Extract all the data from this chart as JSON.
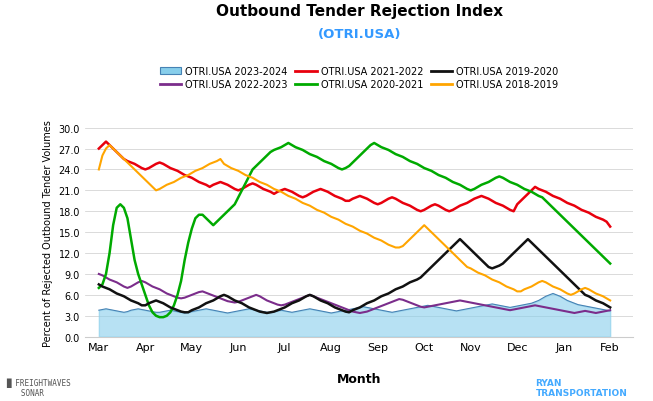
{
  "title": "Outbound Tender Rejection Index",
  "subtitle": "(OTRI.USA)",
  "xlabel": "Month",
  "ylabel": "Percent of Rejected Outbound Tender Volumes",
  "ylim": [
    0.0,
    30.0
  ],
  "yticks": [
    0.0,
    3.0,
    6.0,
    9.0,
    12.0,
    15.0,
    18.0,
    21.0,
    24.0,
    27.0,
    30.0
  ],
  "months": [
    "Mar",
    "Apr",
    "May",
    "Jun",
    "Jul",
    "Aug",
    "Sep",
    "Oct",
    "Nov",
    "Dec",
    "Jan",
    "Feb"
  ],
  "colors": {
    "2023-2024": "#87CEEB",
    "2022-2023": "#7B2D8B",
    "2021-2022": "#E8000D",
    "2020-2021": "#00AA00",
    "2019-2020": "#111111",
    "2018-2019": "#FFA500"
  },
  "legend_labels": [
    "OTRI.USA 2023-2024",
    "OTRI.USA 2022-2023",
    "OTRI.USA 2021-2022",
    "OTRI.USA 2020-2021",
    "OTRI.USA 2019-2020",
    "OTRI.USA 2018-2019"
  ],
  "series_2023_2024": [
    3.8,
    3.9,
    4.0,
    3.9,
    3.8,
    3.7,
    3.6,
    3.5,
    3.6,
    3.8,
    3.9,
    4.0,
    3.9,
    3.8,
    3.7,
    3.6,
    3.5,
    3.5,
    3.6,
    3.7,
    3.8,
    3.7,
    3.6,
    3.5,
    3.4,
    3.5,
    3.6,
    3.7,
    3.8,
    3.9,
    4.0,
    3.9,
    3.8,
    3.7,
    3.6,
    3.5,
    3.4,
    3.5,
    3.6,
    3.7,
    3.8,
    3.9,
    4.0,
    3.9,
    3.8,
    3.7,
    3.6,
    3.5,
    3.5,
    3.6,
    3.7,
    3.8,
    3.7,
    3.6,
    3.5,
    3.6,
    3.7,
    3.8,
    3.9,
    4.0,
    3.9,
    3.8,
    3.7,
    3.6,
    3.5,
    3.4,
    3.5,
    3.6,
    3.7,
    3.8,
    3.9,
    4.0,
    4.1,
    4.2,
    4.3,
    4.2,
    4.1,
    4.0,
    3.9,
    3.8,
    3.7,
    3.6,
    3.5,
    3.6,
    3.7,
    3.8,
    3.9,
    4.0,
    4.1,
    4.2,
    4.3,
    4.4,
    4.5,
    4.4,
    4.3,
    4.2,
    4.1,
    4.0,
    3.9,
    3.8,
    3.7,
    3.8,
    3.9,
    4.0,
    4.1,
    4.2,
    4.3,
    4.4,
    4.5,
    4.6,
    4.7,
    4.6,
    4.5,
    4.4,
    4.3,
    4.2,
    4.3,
    4.4,
    4.5,
    4.6,
    4.7,
    4.8,
    5.0,
    5.2,
    5.5,
    5.8,
    6.0,
    6.2,
    6.0,
    5.8,
    5.5,
    5.2,
    5.0,
    4.8,
    4.6,
    4.5,
    4.4,
    4.3,
    4.2,
    4.1,
    4.0,
    3.9,
    3.8,
    3.7
  ],
  "series_2022_2023": [
    9.0,
    8.8,
    8.5,
    8.2,
    8.0,
    7.8,
    7.5,
    7.2,
    7.0,
    7.2,
    7.5,
    7.8,
    8.0,
    7.8,
    7.5,
    7.2,
    7.0,
    6.8,
    6.5,
    6.2,
    6.0,
    5.8,
    5.6,
    5.5,
    5.6,
    5.8,
    6.0,
    6.2,
    6.4,
    6.5,
    6.3,
    6.1,
    5.9,
    5.7,
    5.5,
    5.3,
    5.1,
    5.0,
    4.9,
    5.0,
    5.2,
    5.4,
    5.6,
    5.8,
    6.0,
    5.8,
    5.5,
    5.2,
    5.0,
    4.8,
    4.6,
    4.5,
    4.6,
    4.8,
    5.0,
    5.2,
    5.4,
    5.6,
    5.8,
    6.0,
    5.8,
    5.6,
    5.4,
    5.2,
    5.0,
    4.8,
    4.6,
    4.4,
    4.2,
    4.0,
    3.8,
    3.6,
    3.5,
    3.4,
    3.5,
    3.6,
    3.8,
    4.0,
    4.2,
    4.4,
    4.6,
    4.8,
    5.0,
    5.2,
    5.4,
    5.3,
    5.1,
    4.9,
    4.7,
    4.5,
    4.3,
    4.2,
    4.3,
    4.4,
    4.5,
    4.6,
    4.7,
    4.8,
    4.9,
    5.0,
    5.1,
    5.2,
    5.1,
    5.0,
    4.9,
    4.8,
    4.7,
    4.6,
    4.5,
    4.4,
    4.3,
    4.2,
    4.1,
    4.0,
    3.9,
    3.8,
    3.9,
    4.0,
    4.1,
    4.2,
    4.3,
    4.4,
    4.5,
    4.4,
    4.3,
    4.2,
    4.1,
    4.0,
    3.9,
    3.8,
    3.7,
    3.6,
    3.5,
    3.4,
    3.5,
    3.6,
    3.7,
    3.6,
    3.5,
    3.4,
    3.5,
    3.6,
    3.7,
    3.8
  ],
  "series_2021_2022": [
    27.0,
    27.5,
    28.0,
    27.5,
    27.0,
    26.5,
    26.0,
    25.5,
    25.2,
    25.0,
    24.8,
    24.5,
    24.2,
    24.0,
    24.2,
    24.5,
    24.8,
    25.0,
    24.8,
    24.5,
    24.2,
    24.0,
    23.8,
    23.5,
    23.2,
    23.0,
    22.8,
    22.5,
    22.2,
    22.0,
    21.8,
    21.5,
    21.8,
    22.0,
    22.2,
    22.0,
    21.8,
    21.5,
    21.2,
    21.0,
    21.2,
    21.5,
    21.8,
    22.0,
    21.8,
    21.5,
    21.2,
    21.0,
    20.8,
    20.5,
    20.8,
    21.0,
    21.2,
    21.0,
    20.8,
    20.5,
    20.2,
    20.0,
    20.2,
    20.5,
    20.8,
    21.0,
    21.2,
    21.0,
    20.8,
    20.5,
    20.2,
    20.0,
    19.8,
    19.5,
    19.5,
    19.8,
    20.0,
    20.2,
    20.0,
    19.8,
    19.5,
    19.2,
    19.0,
    19.2,
    19.5,
    19.8,
    20.0,
    19.8,
    19.5,
    19.2,
    19.0,
    18.8,
    18.5,
    18.2,
    18.0,
    18.2,
    18.5,
    18.8,
    19.0,
    18.8,
    18.5,
    18.2,
    18.0,
    18.2,
    18.5,
    18.8,
    19.0,
    19.2,
    19.5,
    19.8,
    20.0,
    20.2,
    20.0,
    19.8,
    19.5,
    19.2,
    19.0,
    18.8,
    18.5,
    18.2,
    18.0,
    19.0,
    19.5,
    20.0,
    20.5,
    21.0,
    21.5,
    21.2,
    21.0,
    20.8,
    20.5,
    20.2,
    20.0,
    19.8,
    19.5,
    19.2,
    19.0,
    18.8,
    18.5,
    18.2,
    18.0,
    17.8,
    17.5,
    17.2,
    17.0,
    16.8,
    16.5,
    15.8
  ],
  "series_2020_2021": [
    7.0,
    7.5,
    9.0,
    12.0,
    16.0,
    18.5,
    19.0,
    18.5,
    17.0,
    14.0,
    11.0,
    9.0,
    7.5,
    6.0,
    4.5,
    3.5,
    3.0,
    2.8,
    2.8,
    3.0,
    3.5,
    4.5,
    6.0,
    8.0,
    11.0,
    13.5,
    15.5,
    17.0,
    17.5,
    17.5,
    17.0,
    16.5,
    16.0,
    16.5,
    17.0,
    17.5,
    18.0,
    18.5,
    19.0,
    20.0,
    21.0,
    22.0,
    23.0,
    24.0,
    24.5,
    25.0,
    25.5,
    26.0,
    26.5,
    26.8,
    27.0,
    27.2,
    27.5,
    27.8,
    27.5,
    27.2,
    27.0,
    26.8,
    26.5,
    26.2,
    26.0,
    25.8,
    25.5,
    25.2,
    25.0,
    24.8,
    24.5,
    24.2,
    24.0,
    24.2,
    24.5,
    25.0,
    25.5,
    26.0,
    26.5,
    27.0,
    27.5,
    27.8,
    27.5,
    27.2,
    27.0,
    26.8,
    26.5,
    26.2,
    26.0,
    25.8,
    25.5,
    25.2,
    25.0,
    24.8,
    24.5,
    24.2,
    24.0,
    23.8,
    23.5,
    23.2,
    23.0,
    22.8,
    22.5,
    22.2,
    22.0,
    21.8,
    21.5,
    21.2,
    21.0,
    21.2,
    21.5,
    21.8,
    22.0,
    22.2,
    22.5,
    22.8,
    23.0,
    22.8,
    22.5,
    22.2,
    22.0,
    21.8,
    21.5,
    21.2,
    21.0,
    20.8,
    20.5,
    20.2,
    20.0,
    19.5,
    19.0,
    18.5,
    18.0,
    17.5,
    17.0,
    16.5,
    16.0,
    15.5,
    15.0,
    14.5,
    14.0,
    13.5,
    13.0,
    12.5,
    12.0,
    11.5,
    11.0,
    10.5
  ],
  "series_2019_2020": [
    7.5,
    7.2,
    7.0,
    6.8,
    6.5,
    6.2,
    6.0,
    5.8,
    5.5,
    5.2,
    5.0,
    4.8,
    4.5,
    4.5,
    4.8,
    5.0,
    5.2,
    5.0,
    4.8,
    4.5,
    4.2,
    4.0,
    3.8,
    3.6,
    3.5,
    3.5,
    3.8,
    4.0,
    4.2,
    4.5,
    4.8,
    5.0,
    5.2,
    5.5,
    5.8,
    6.0,
    5.8,
    5.5,
    5.2,
    5.0,
    4.8,
    4.5,
    4.2,
    4.0,
    3.8,
    3.6,
    3.5,
    3.4,
    3.5,
    3.6,
    3.8,
    4.0,
    4.2,
    4.5,
    4.8,
    5.0,
    5.2,
    5.5,
    5.8,
    6.0,
    5.8,
    5.5,
    5.2,
    5.0,
    4.8,
    4.5,
    4.2,
    4.0,
    3.8,
    3.6,
    3.5,
    3.8,
    4.0,
    4.2,
    4.5,
    4.8,
    5.0,
    5.2,
    5.5,
    5.8,
    6.0,
    6.2,
    6.5,
    6.8,
    7.0,
    7.2,
    7.5,
    7.8,
    8.0,
    8.2,
    8.5,
    9.0,
    9.5,
    10.0,
    10.5,
    11.0,
    11.5,
    12.0,
    12.5,
    13.0,
    13.5,
    14.0,
    13.5,
    13.0,
    12.5,
    12.0,
    11.5,
    11.0,
    10.5,
    10.0,
    9.8,
    10.0,
    10.2,
    10.5,
    11.0,
    11.5,
    12.0,
    12.5,
    13.0,
    13.5,
    14.0,
    13.5,
    13.0,
    12.5,
    12.0,
    11.5,
    11.0,
    10.5,
    10.0,
    9.5,
    9.0,
    8.5,
    8.0,
    7.5,
    7.0,
    6.5,
    6.0,
    5.8,
    5.5,
    5.2,
    5.0,
    4.8,
    4.5,
    4.2
  ],
  "series_2018_2019": [
    24.0,
    26.0,
    27.0,
    27.5,
    27.0,
    26.5,
    26.0,
    25.5,
    25.0,
    24.5,
    24.0,
    23.5,
    23.0,
    22.5,
    22.0,
    21.5,
    21.0,
    21.2,
    21.5,
    21.8,
    22.0,
    22.2,
    22.5,
    22.8,
    23.0,
    23.2,
    23.5,
    23.8,
    24.0,
    24.2,
    24.5,
    24.8,
    25.0,
    25.2,
    25.5,
    24.8,
    24.5,
    24.2,
    24.0,
    23.8,
    23.5,
    23.2,
    23.0,
    22.8,
    22.5,
    22.2,
    22.0,
    21.8,
    21.5,
    21.2,
    21.0,
    20.8,
    20.5,
    20.2,
    20.0,
    19.8,
    19.5,
    19.2,
    19.0,
    18.8,
    18.5,
    18.2,
    18.0,
    17.8,
    17.5,
    17.2,
    17.0,
    16.8,
    16.5,
    16.2,
    16.0,
    15.8,
    15.5,
    15.2,
    15.0,
    14.8,
    14.5,
    14.2,
    14.0,
    13.8,
    13.5,
    13.2,
    13.0,
    12.8,
    12.8,
    13.0,
    13.5,
    14.0,
    14.5,
    15.0,
    15.5,
    16.0,
    15.5,
    15.0,
    14.5,
    14.0,
    13.5,
    13.0,
    12.5,
    12.0,
    11.5,
    11.0,
    10.5,
    10.0,
    9.8,
    9.5,
    9.2,
    9.0,
    8.8,
    8.5,
    8.2,
    8.0,
    7.8,
    7.5,
    7.2,
    7.0,
    6.8,
    6.5,
    6.5,
    6.8,
    7.0,
    7.2,
    7.5,
    7.8,
    8.0,
    7.8,
    7.5,
    7.2,
    7.0,
    6.8,
    6.5,
    6.2,
    6.0,
    6.2,
    6.5,
    6.8,
    7.0,
    6.8,
    6.5,
    6.2,
    6.0,
    5.8,
    5.5,
    5.2
  ]
}
